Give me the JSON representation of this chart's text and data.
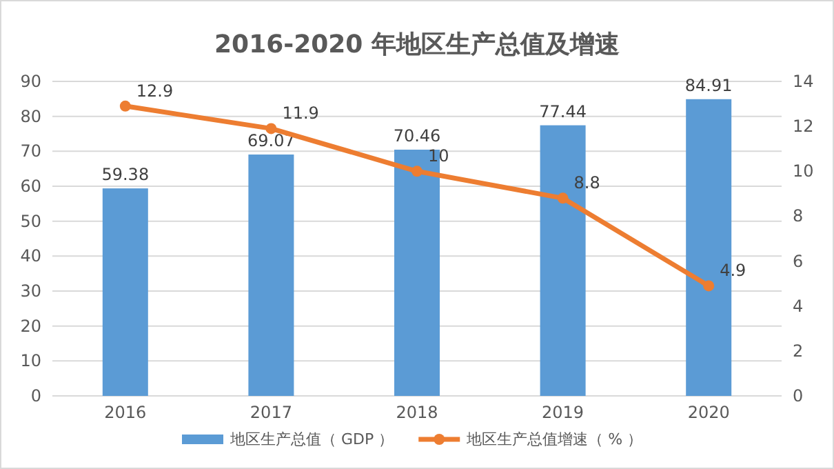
{
  "chart_data": {
    "type": "bar",
    "title": "2016-2020 年地区生产总值及增速",
    "categories": [
      "2016",
      "2017",
      "2018",
      "2019",
      "2020"
    ],
    "series": [
      {
        "name": "地区生产总值（ GDP ）",
        "color": "#5b9bd5",
        "values": [
          59.38,
          69.07,
          70.46,
          77.44,
          84.91
        ]
      },
      {
        "name": "地区生产总值增速（ % ）",
        "type": "line",
        "color": "#ed7d31",
        "axis": "y2",
        "marker": "circle",
        "values": [
          12.9,
          11.9,
          10,
          8.8,
          4.9
        ]
      }
    ],
    "ylim": [
      0,
      90
    ],
    "yticks": [
      0,
      10,
      20,
      30,
      40,
      50,
      60,
      70,
      80,
      90
    ],
    "y2lim": [
      0,
      14
    ],
    "y2ticks": [
      0,
      2,
      4,
      6,
      8,
      10,
      12,
      14
    ],
    "grid": "y",
    "legend": "bottom",
    "data_labels": true
  }
}
